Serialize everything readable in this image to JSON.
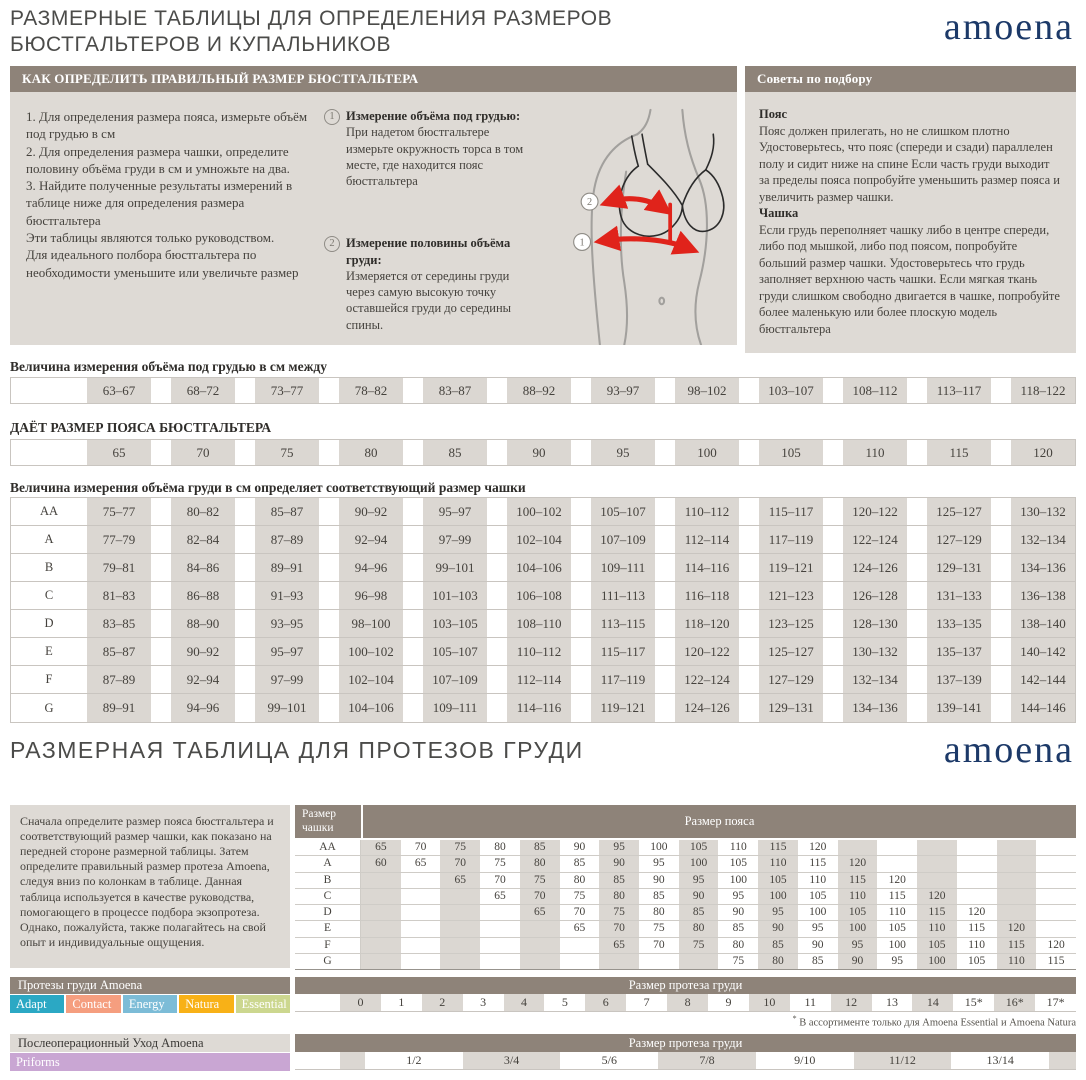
{
  "page": {
    "title_line1": "РАЗМЕРНЫЕ ТАБЛИЦЫ ДЛЯ ОПРЕДЕЛЕНИЯ РАЗМЕРОВ",
    "title_line2": "БЮСТГАЛЬТЕРОВ И КУПАЛЬНИКОВ",
    "brand": "amoena",
    "section2_title": "РАЗМЕРНАЯ ТАБЛИЦА ДЛЯ ПРОТЕЗОВ ГРУДИ"
  },
  "how_to": {
    "header": "КАК ОПРЕДЕЛИТЬ ПРАВИЛЬНЫЙ РАЗМЕР БЮСТГАЛЬТЕРА",
    "step1": "1. Для определения размера пояса, измерьте объём под грудью в см",
    "step2": "2.  Для определения размера чашки, определите половину объёма груди в см и умножьте на два.",
    "step3": "3.  Найдите полученные результаты измерений в таблице ниже для определения размера бюстгальтера",
    "note1": "Эти таблицы являются только руководством.",
    "note2": "Для идеального полбора бюстгальтера по необходимости уменьшите или увеличьте размер",
    "marker1": "1",
    "marker2": "2",
    "measure1_title": "Измерение объёма под грудью:",
    "measure1_text": "При надетом бюстгальтере измерьте окружность торса в том месте, где находится пояс бюстгальтера",
    "measure2_title": "Измерение половины объёма груди:",
    "measure2_text": "Измеряется от середины груди через самую высокую точку оставшейся груди до середины спины."
  },
  "tips": {
    "header": "Советы по подбору",
    "belt_title": "Пояс",
    "belt_text": "Пояс должен прилегать, но не слишком плотно Удостоверьтесь, что пояс (спереди и сзади) параллелен полу и сидит ниже на спине Если часть груди выходит за пределы пояса попробуйте уменьшить размер пояса и увеличить размер чашки.",
    "cup_title": "Чашка",
    "cup_text": "Если грудь переполняет чашку либо в центре спереди, либо под мышкой, либо под поясом, попробуйте больший размер чашки. Удостоверьтесь что грудь заполняет верхнюю часть чашки. Если мягкая ткань груди слишком свободно двигается в чашке, попробуйте более маленькую или более плоскую модель бюстгальтера"
  },
  "size_tables": {
    "underbust_label": "Величина измерения объёма под грудью в см между",
    "underbust_ranges": [
      "63–67",
      "68–72",
      "73–77",
      "78–82",
      "83–87",
      "88–92",
      "93–97",
      "98–102",
      "103–107",
      "108–112",
      "113–117",
      "118–122"
    ],
    "band_label": "ДАЁТ РАЗМЕР ПОЯСА БЮСТГАЛЬТЕРА",
    "band_sizes": [
      "65",
      "70",
      "75",
      "80",
      "85",
      "90",
      "95",
      "100",
      "105",
      "110",
      "115",
      "120"
    ],
    "cup_label": "Величина измерения объёма груди в см определяет соответствующий размер чашки",
    "cup_rows": [
      {
        "cup": "AA",
        "ranges": [
          "75–77",
          "80–82",
          "85–87",
          "90–92",
          "95–97",
          "100–102",
          "105–107",
          "110–112",
          "115–117",
          "120–122",
          "125–127",
          "130–132"
        ]
      },
      {
        "cup": "A",
        "ranges": [
          "77–79",
          "82–84",
          "87–89",
          "92–94",
          "97–99",
          "102–104",
          "107–109",
          "112–114",
          "117–119",
          "122–124",
          "127–129",
          "132–134"
        ]
      },
      {
        "cup": "B",
        "ranges": [
          "79–81",
          "84–86",
          "89–91",
          "94–96",
          "99–101",
          "104–106",
          "109–111",
          "114–116",
          "119–121",
          "124–126",
          "129–131",
          "134–136"
        ]
      },
      {
        "cup": "C",
        "ranges": [
          "81–83",
          "86–88",
          "91–93",
          "96–98",
          "101–103",
          "106–108",
          "111–113",
          "116–118",
          "121–123",
          "126–128",
          "131–133",
          "136–138"
        ]
      },
      {
        "cup": "D",
        "ranges": [
          "83–85",
          "88–90",
          "93–95",
          "98–100",
          "103–105",
          "108–110",
          "113–115",
          "118–120",
          "123–125",
          "128–130",
          "133–135",
          "138–140"
        ]
      },
      {
        "cup": "E",
        "ranges": [
          "85–87",
          "90–92",
          "95–97",
          "100–102",
          "105–107",
          "110–112",
          "115–117",
          "120–122",
          "125–127",
          "130–132",
          "135–137",
          "140–142"
        ]
      },
      {
        "cup": "F",
        "ranges": [
          "87–89",
          "92–94",
          "97–99",
          "102–104",
          "107–109",
          "112–114",
          "117–119",
          "122–124",
          "127–129",
          "132–134",
          "137–139",
          "142–144"
        ]
      },
      {
        "cup": "G",
        "ranges": [
          "89–91",
          "94–96",
          "99–101",
          "104–106",
          "109–111",
          "114–116",
          "119–121",
          "124–126",
          "129–131",
          "134–136",
          "139–141",
          "144–146"
        ]
      }
    ]
  },
  "prosthesis": {
    "intro": "Сначала определите размер пояса бюстгальтера и соответствующий размер чашки, как показано на передней стороне размерной таблицы. Затем определите правильный размер протеза Amoena, следуя вниз по колонкам в таблице. Данная таблица используется в качестве руководства, помогающего в процессе подбора экзопротеза. Однако, пожалуйста, также полагайтесь на свой опыт и индивидуальные ощущения.",
    "band_table": {
      "cup_header": "Размер чашки",
      "band_header": "Размер пояса",
      "rows": [
        {
          "cup": "AA",
          "values": [
            "65",
            "70",
            "75",
            "80",
            "85",
            "90",
            "95",
            "100",
            "105",
            "110",
            "115",
            "120",
            "",
            "",
            "",
            "",
            "",
            ""
          ]
        },
        {
          "cup": "A",
          "values": [
            "60",
            "65",
            "70",
            "75",
            "80",
            "85",
            "90",
            "95",
            "100",
            "105",
            "110",
            "115",
            "120",
            "",
            "",
            "",
            "",
            ""
          ]
        },
        {
          "cup": "B",
          "values": [
            "",
            "",
            "65",
            "70",
            "75",
            "80",
            "85",
            "90",
            "95",
            "100",
            "105",
            "110",
            "115",
            "120",
            "",
            "",
            "",
            ""
          ]
        },
        {
          "cup": "C",
          "values": [
            "",
            "",
            "",
            "65",
            "70",
            "75",
            "80",
            "85",
            "90",
            "95",
            "100",
            "105",
            "110",
            "115",
            "120",
            "",
            "",
            ""
          ]
        },
        {
          "cup": "D",
          "values": [
            "",
            "",
            "",
            "",
            "65",
            "70",
            "75",
            "80",
            "85",
            "90",
            "95",
            "100",
            "105",
            "110",
            "115",
            "120",
            "",
            ""
          ]
        },
        {
          "cup": "E",
          "values": [
            "",
            "",
            "",
            "",
            "",
            "65",
            "70",
            "75",
            "80",
            "85",
            "90",
            "95",
            "100",
            "105",
            "110",
            "115",
            "120",
            ""
          ]
        },
        {
          "cup": "F",
          "values": [
            "",
            "",
            "",
            "",
            "",
            "",
            "65",
            "70",
            "75",
            "80",
            "85",
            "90",
            "95",
            "100",
            "105",
            "110",
            "115",
            "120"
          ]
        },
        {
          "cup": "G",
          "values": [
            "",
            "",
            "",
            "",
            "",
            "",
            "",
            "",
            "",
            "75",
            "80",
            "85",
            "90",
            "95",
            "100",
            "105",
            "110",
            "115"
          ]
        }
      ]
    },
    "size_table": {
      "header": "Размер протеза груди",
      "values": [
        "0",
        "1",
        "2",
        "3",
        "4",
        "5",
        "6",
        "7",
        "8",
        "9",
        "10",
        "11",
        "12",
        "13",
        "14",
        "15*",
        "16*",
        "17*"
      ]
    },
    "footnote_star": "*",
    "footnote_text": " В ассортименте только для  Amoena Essential и Amoena Natura",
    "care_size_table": {
      "header": "Размер протеза груди",
      "values": [
        "1/2",
        "3/4",
        "5/6",
        "7/8",
        "9/10",
        "11/12",
        "13/14"
      ]
    }
  },
  "product_lines": {
    "title": "Протезы груди Amoena",
    "chips": [
      {
        "label": "Adapt",
        "color": "#2BA8C4"
      },
      {
        "label": "Contact",
        "color": "#F59E7F"
      },
      {
        "label": "Energy",
        "color": "#7CBCD7"
      },
      {
        "label": "Natura",
        "color": "#F8B117"
      },
      {
        "label": "Essential",
        "color": "#CCD78F"
      }
    ],
    "care_title": "Послеоперационный Уход Amoena",
    "care_chips": [
      {
        "label": "Priforms",
        "color": "#C9A6D3"
      }
    ]
  }
}
